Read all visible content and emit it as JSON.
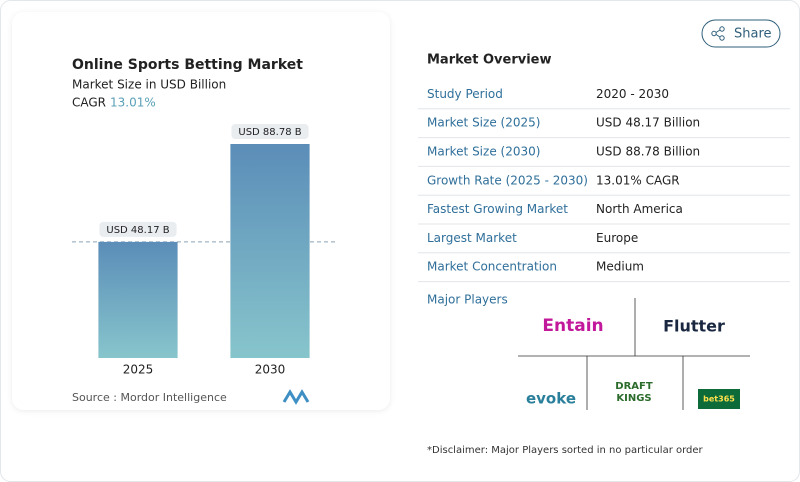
{
  "chart_data": {
    "type": "bar",
    "title": "Online Sports Betting Market",
    "subtitle": "Market Size in USD Billion",
    "cagr_label": "CAGR",
    "cagr": "13.01%",
    "categories": [
      "2025",
      "2030"
    ],
    "values": [
      48.17,
      88.78
    ],
    "value_labels": [
      "USD 48.17 B",
      "USD 88.78 B"
    ],
    "color_top": "#5b8db8",
    "color_bottom": "#87c5cc",
    "source": "Source :  Mordor Intelligence"
  },
  "share": "Share",
  "overview": {
    "title": "Market Overview",
    "rows": [
      [
        "Study Period",
        "2020 - 2030"
      ],
      [
        "Market Size (2025)",
        "USD 48.17 Billion"
      ],
      [
        "Market Size (2030)",
        "USD 88.78 Billion"
      ],
      [
        "Growth Rate (2025 - 2030)",
        "13.01% CAGR"
      ],
      [
        "Fastest Growing Market",
        "North America"
      ],
      [
        "Largest Market",
        "Europe"
      ],
      [
        "Market Concentration",
        "Medium"
      ]
    ]
  },
  "players": {
    "title": "Major Players",
    "names": [
      "Entain",
      "Flutter",
      "evoke",
      "DRAFT KINGS",
      "bet365"
    ]
  },
  "disclaimer": "*Disclaimer: Major Players sorted in no particular order"
}
